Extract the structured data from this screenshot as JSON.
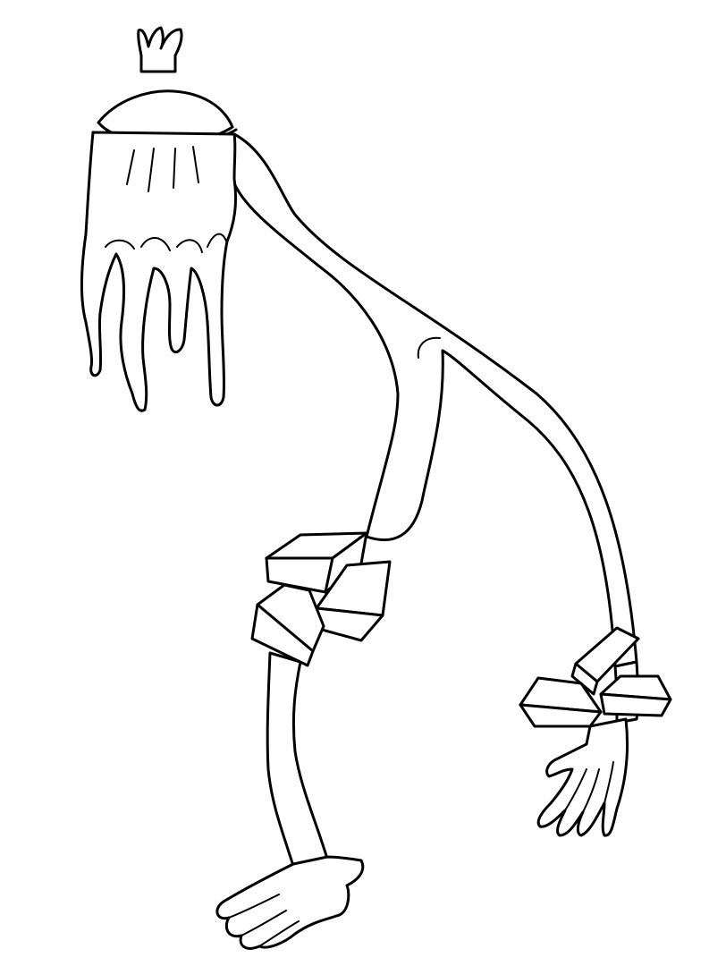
{
  "drawing": {
    "colors": {
      "background": "#ffffff",
      "ink": "#000000",
      "accent": "#e7a6e2"
    },
    "elements": [
      "crown-icon",
      "pink-cap",
      "hand-head",
      "long-body",
      "knee-blocks",
      "leg",
      "foot",
      "arm",
      "wrist-blocks",
      "hand"
    ]
  }
}
